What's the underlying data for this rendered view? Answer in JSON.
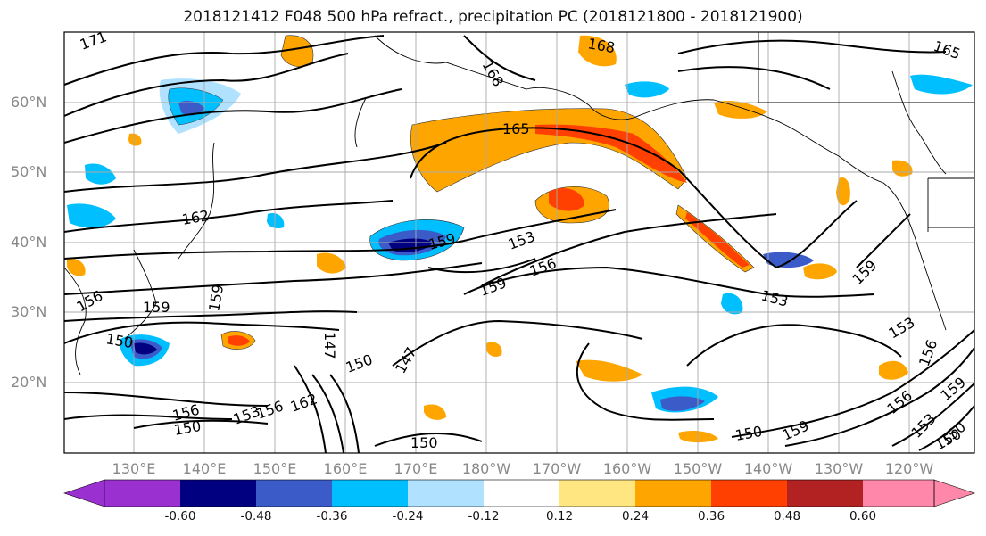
{
  "title": "2018121412 F048 500 hPa refract., precipitation PC (2018121800 - 2018121900)",
  "lat_labels": [
    "60°N",
    "50°N",
    "40°N",
    "30°N",
    "20°N"
  ],
  "lon_labels": [
    "130°E",
    "140°E",
    "150°E",
    "160°E",
    "170°E",
    "180°W",
    "170°W",
    "160°W",
    "150°W",
    "140°W",
    "130°W",
    "120°W"
  ],
  "contour_labels": [
    "171",
    "168",
    "168",
    "165",
    "165",
    "162",
    "159",
    "159",
    "159",
    "159",
    "156",
    "156",
    "156",
    "153",
    "153",
    "153",
    "150",
    "150",
    "150",
    "150",
    "150",
    "147",
    "147",
    "159",
    "159",
    "162",
    "156",
    "153",
    "150",
    "156",
    "153",
    "156",
    "159",
    "150"
  ],
  "colorbar": {
    "ticks": [
      "-0.60",
      "-0.48",
      "-0.36",
      "-0.24",
      "-0.12",
      "0.12",
      "0.24",
      "0.36",
      "0.48",
      "0.60"
    ],
    "colors": [
      "#9b30d0",
      "#000080",
      "#3a5bc8",
      "#00bfff",
      "#b0e2ff",
      "#ffffff",
      "#ffe680",
      "#ffa500",
      "#ff4000",
      "#b22222",
      "#ff88aa"
    ]
  }
}
